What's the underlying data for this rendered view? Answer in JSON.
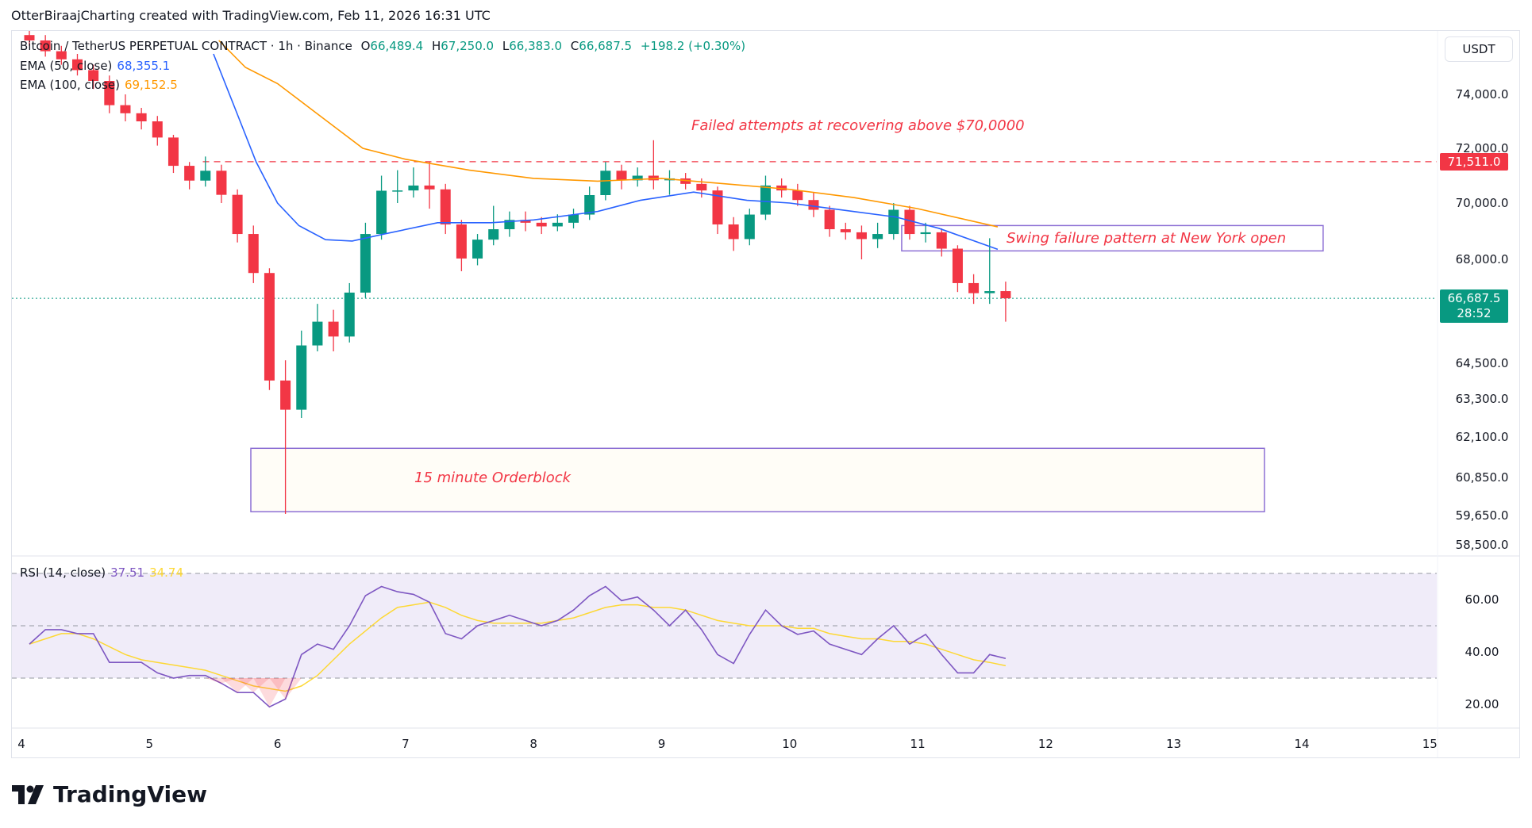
{
  "header": {
    "text": "OtterBiraajCharting created with TradingView.com, Feb 11, 2026 16:31 UTC"
  },
  "symbol": {
    "name": "Bitcoin / TetherUS PERPETUAL CONTRACT · 1h · Binance",
    "open_label": "O",
    "open": "66,489.4",
    "high_label": "H",
    "high": "67,250.0",
    "low_label": "L",
    "low": "66,383.0",
    "close_label": "C",
    "close": "66,687.5",
    "change": "+198.2 (+0.30%)"
  },
  "indicators": {
    "ema50": {
      "label": "EMA (50, close)",
      "value": "68,355.1",
      "color": "#2962ff"
    },
    "ema100": {
      "label": "EMA (100, close)",
      "value": "69,152.5",
      "color": "#ff9800"
    },
    "rsi": {
      "label": "RSI (14, close)",
      "value": "37.51",
      "ma_value": "34.74",
      "color": "#7e57c2",
      "ma_color": "#fdd835"
    }
  },
  "currency_button": "USDT",
  "price_labels": {
    "resistance": "71,511.0",
    "last": "66,687.5",
    "countdown": "28:52"
  },
  "annotations": {
    "failed": "Failed attempts at recovering above $70,0000",
    "sfp": "Swing failure pattern at New York open",
    "orderblock": "15 minute Orderblock"
  },
  "brand": "TradingView",
  "colors": {
    "up": "#089981",
    "down": "#f23645",
    "box": "#8c6fd4",
    "rsi_band": "#f0ecf9"
  },
  "chart_data": [
    {
      "type": "candlestick",
      "interval_shown": "3h aggregate approximation of 1h chart",
      "y_scale": "log",
      "price_ticks": [
        74000,
        72000,
        70000,
        68000,
        64500,
        63300,
        62100,
        60850,
        59650,
        58500
      ],
      "x_ticks": [
        "4",
        "5",
        "6",
        "7",
        "8",
        "9",
        "10",
        "11",
        "12",
        "13",
        "14",
        "15"
      ],
      "candles": [
        [
          "2026-02-04T00:00",
          76200,
          76500,
          75800,
          76000
        ],
        [
          "2026-02-04T03:00",
          76000,
          76200,
          75400,
          75600
        ],
        [
          "2026-02-04T06:00",
          75600,
          75800,
          75100,
          75300
        ],
        [
          "2026-02-04T09:00",
          75300,
          75500,
          74700,
          74900
        ],
        [
          "2026-02-04T12:00",
          74900,
          75100,
          74200,
          74500
        ],
        [
          "2026-02-04T15:00",
          74500,
          74700,
          73300,
          73600
        ],
        [
          "2026-02-04T18:00",
          73600,
          74000,
          73000,
          73300
        ],
        [
          "2026-02-04T21:00",
          73300,
          73500,
          72700,
          73000
        ],
        [
          "2026-02-05T00:00",
          73000,
          73200,
          72100,
          72400
        ],
        [
          "2026-02-05T03:00",
          72400,
          72500,
          71100,
          71360
        ],
        [
          "2026-02-05T06:00",
          71360,
          71500,
          70500,
          70820
        ],
        [
          "2026-02-05T09:00",
          70820,
          71700,
          70600,
          71180
        ],
        [
          "2026-02-05T12:00",
          71180,
          71400,
          70000,
          70300
        ],
        [
          "2026-02-05T15:00",
          70300,
          70500,
          68600,
          68900
        ],
        [
          "2026-02-05T18:00",
          68900,
          69200,
          67200,
          67540
        ],
        [
          "2026-02-05T21:00",
          67540,
          67700,
          63600,
          63920
        ],
        [
          "2026-02-06T00:00",
          63920,
          64600,
          59700,
          62960
        ],
        [
          "2026-02-06T03:00",
          62960,
          65600,
          62700,
          65100
        ],
        [
          "2026-02-06T06:00",
          65100,
          66500,
          64900,
          65900
        ],
        [
          "2026-02-06T09:00",
          65900,
          66300,
          64900,
          65400
        ],
        [
          "2026-02-06T12:00",
          65400,
          67200,
          65200,
          66880
        ],
        [
          "2026-02-06T15:00",
          66880,
          69300,
          66700,
          68900
        ],
        [
          "2026-02-06T18:00",
          68900,
          71000,
          68700,
          70450
        ],
        [
          "2026-02-06T21:00",
          70450,
          71200,
          70000,
          70460
        ],
        [
          "2026-02-07T00:00",
          70460,
          71300,
          70200,
          70640
        ],
        [
          "2026-02-07T03:00",
          70640,
          71500,
          69800,
          70500
        ],
        [
          "2026-02-07T06:00",
          70500,
          70700,
          68900,
          69240
        ],
        [
          "2026-02-07T09:00",
          69240,
          69400,
          67600,
          68030
        ],
        [
          "2026-02-07T12:00",
          68030,
          68900,
          67800,
          68700
        ],
        [
          "2026-02-07T15:00",
          68700,
          69900,
          68500,
          69070
        ],
        [
          "2026-02-07T18:00",
          69070,
          69700,
          68800,
          69400
        ],
        [
          "2026-02-07T21:00",
          69400,
          69700,
          69000,
          69300
        ],
        [
          "2026-02-08T00:00",
          69300,
          69500,
          68900,
          69170
        ],
        [
          "2026-02-08T03:00",
          69170,
          69600,
          69000,
          69300
        ],
        [
          "2026-02-08T06:00",
          69300,
          69800,
          69100,
          69590
        ],
        [
          "2026-02-08T09:00",
          69590,
          70600,
          69400,
          70290
        ],
        [
          "2026-02-08T12:00",
          70290,
          71500,
          70100,
          71180
        ],
        [
          "2026-02-08T15:00",
          71180,
          71400,
          70500,
          70830
        ],
        [
          "2026-02-08T18:00",
          70830,
          71300,
          70600,
          71000
        ],
        [
          "2026-02-08T21:00",
          71000,
          72300,
          70500,
          70830
        ],
        [
          "2026-02-09T00:00",
          70830,
          71200,
          70300,
          70900
        ],
        [
          "2026-02-09T03:00",
          70900,
          71100,
          70500,
          70700
        ],
        [
          "2026-02-09T06:00",
          70700,
          70900,
          70200,
          70460
        ],
        [
          "2026-02-09T09:00",
          70460,
          70600,
          68900,
          69240
        ],
        [
          "2026-02-09T12:00",
          69240,
          69500,
          68300,
          68720
        ],
        [
          "2026-02-09T15:00",
          68720,
          69800,
          68500,
          69590
        ],
        [
          "2026-02-09T18:00",
          69590,
          71000,
          69400,
          70640
        ],
        [
          "2026-02-09T21:00",
          70640,
          70900,
          70200,
          70460
        ],
        [
          "2026-02-10T00:00",
          70460,
          70700,
          69900,
          70110
        ],
        [
          "2026-02-10T03:00",
          70110,
          70400,
          69500,
          69760
        ],
        [
          "2026-02-10T06:00",
          69760,
          69900,
          68800,
          69070
        ],
        [
          "2026-02-10T09:00",
          69070,
          69300,
          68700,
          68960
        ],
        [
          "2026-02-10T12:00",
          68960,
          69200,
          68000,
          68720
        ],
        [
          "2026-02-10T15:00",
          68720,
          69300,
          68400,
          68900
        ],
        [
          "2026-02-10T18:00",
          68900,
          70000,
          68700,
          69760
        ],
        [
          "2026-02-10T21:00",
          69760,
          69900,
          68700,
          68900
        ],
        [
          "2026-02-11T00:00",
          68900,
          69300,
          68600,
          68960
        ],
        [
          "2026-02-11T03:00",
          68960,
          69100,
          68100,
          68380
        ],
        [
          "2026-02-11T06:00",
          68380,
          68500,
          66900,
          67200
        ],
        [
          "2026-02-11T09:00",
          67200,
          67500,
          66500,
          66860
        ],
        [
          "2026-02-11T12:00",
          66860,
          68750,
          66500,
          66930
        ],
        [
          "2026-02-11T15:00",
          66930,
          67250,
          65900,
          66687.5
        ]
      ],
      "ema50": [
        [
          "2026-02-05T12:00",
          75500
        ],
        [
          "2026-02-05T16:00",
          73500
        ],
        [
          "2026-02-05T20:00",
          71500
        ],
        [
          "2026-02-06T00:00",
          70000
        ],
        [
          "2026-02-06T04:00",
          69200
        ],
        [
          "2026-02-06T09:00",
          68700
        ],
        [
          "2026-02-06T14:00",
          68650
        ],
        [
          "2026-02-06T20:00",
          68900
        ],
        [
          "2026-02-07T06:00",
          69300
        ],
        [
          "2026-02-07T16:00",
          69300
        ],
        [
          "2026-02-08T00:00",
          69400
        ],
        [
          "2026-02-08T12:00",
          69700
        ],
        [
          "2026-02-08T20:00",
          70100
        ],
        [
          "2026-02-09T06:00",
          70400
        ],
        [
          "2026-02-09T16:00",
          70100
        ],
        [
          "2026-02-10T00:00",
          70000
        ],
        [
          "2026-02-10T12:00",
          69700
        ],
        [
          "2026-02-10T20:00",
          69500
        ],
        [
          "2026-02-11T04:00",
          69100
        ],
        [
          "2026-02-11T15:00",
          68355.1
        ]
      ],
      "ema100": [
        [
          "2026-02-05T13:00",
          76000
        ],
        [
          "2026-02-05T18:00",
          75000
        ],
        [
          "2026-02-06T00:00",
          74400
        ],
        [
          "2026-02-06T08:00",
          73200
        ],
        [
          "2026-02-06T16:00",
          72000
        ],
        [
          "2026-02-07T00:00",
          71600
        ],
        [
          "2026-02-07T12:00",
          71200
        ],
        [
          "2026-02-08T00:00",
          70900
        ],
        [
          "2026-02-08T12:00",
          70800
        ],
        [
          "2026-02-09T00:00",
          70900
        ],
        [
          "2026-02-09T12:00",
          70700
        ],
        [
          "2026-02-10T00:00",
          70500
        ],
        [
          "2026-02-10T12:00",
          70200
        ],
        [
          "2026-02-11T00:00",
          69800
        ],
        [
          "2026-02-11T15:00",
          69152.5
        ]
      ],
      "levels": [
        {
          "price": 71511.0,
          "from": "2026-02-05T10:00",
          "style": "dashed",
          "color": "#f23645"
        },
        {
          "price": 66687.5,
          "style": "dotted",
          "color": "#089981"
        }
      ],
      "boxes": [
        {
          "name": "sfp",
          "from": "2026-02-10T21:00",
          "to": "2026-02-14T04:00",
          "top": 69200,
          "bottom": 68300
        },
        {
          "name": "orderblock",
          "from": "2026-02-05T19:00",
          "to": "2026-02-13T17:00",
          "top": 61750,
          "bottom": 59770
        }
      ]
    },
    {
      "type": "line",
      "title": "RSI (14, close)",
      "ylim": [
        10,
        75
      ],
      "y_ticks": [
        60,
        40,
        20
      ],
      "bands": [
        70,
        50,
        30
      ],
      "rsi": [
        43,
        48.5,
        48.5,
        47,
        47,
        36,
        36,
        36,
        32,
        30,
        31,
        31,
        28,
        24.5,
        24.5,
        19,
        22,
        39,
        43,
        41,
        50,
        61.5,
        65,
        63,
        62,
        59,
        47,
        45,
        50,
        52,
        54,
        52,
        50,
        52,
        56,
        61.5,
        65,
        59.6,
        61,
        56,
        50,
        56,
        48.5,
        39,
        35.6,
        46.7,
        56,
        50,
        46.7,
        48,
        43,
        41,
        39,
        45,
        50,
        43,
        46.7,
        39,
        32,
        32,
        39,
        37.51
      ],
      "rsi_ma": [
        43,
        45,
        47,
        47,
        45,
        42,
        39,
        37,
        36,
        35,
        34,
        33,
        31,
        29,
        27,
        26,
        25,
        27,
        31,
        37,
        43,
        48,
        53,
        57,
        58,
        59,
        57,
        54,
        52,
        51,
        51,
        51,
        51,
        52,
        53,
        55,
        57,
        58,
        58,
        57,
        57,
        56,
        54,
        52,
        51,
        50,
        50,
        50,
        49,
        49,
        47,
        46,
        45,
        45,
        44,
        44,
        43,
        41,
        39,
        37,
        36,
        34.74
      ]
    }
  ]
}
